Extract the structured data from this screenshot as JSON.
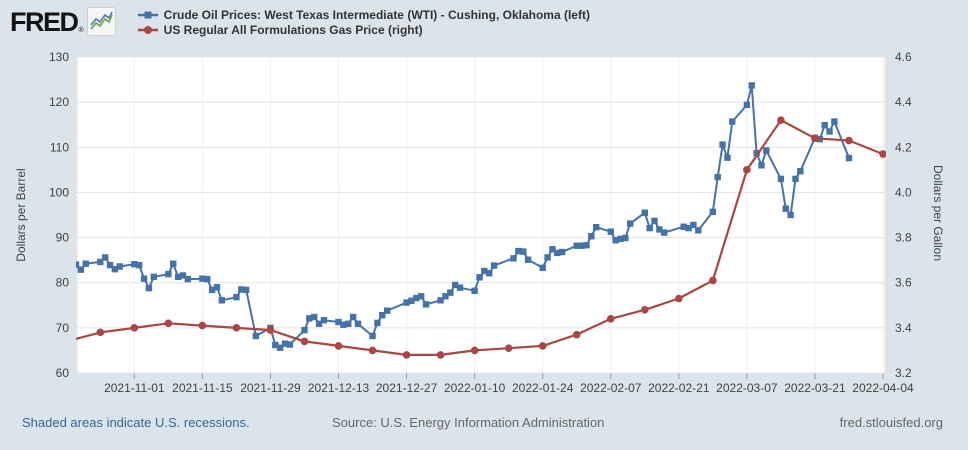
{
  "header": {
    "logo_text": "FRED",
    "logo_registered": "®"
  },
  "footer": {
    "recessions_note": "Shaded areas indicate U.S. recessions.",
    "source": "Source: U.S. Energy Information Administration",
    "site": "fred.stlouisfed.org"
  },
  "colors": {
    "background": "#dce4eb",
    "plot_background": "#ffffff",
    "gridline": "#e3e3e3",
    "vertical_gridline": "#f0f0f0",
    "tick_text": "#424242",
    "wti_blue": "#4572A7",
    "gas_red": "#AA4643",
    "footer_link_blue": "#336699"
  },
  "chart_data": {
    "type": "line",
    "title": "",
    "legend_position": "top",
    "grid": true,
    "x_axis": {
      "start": "2021-10-20",
      "end": "2022-04-04",
      "ticks": [
        "2021-11-01",
        "2021-11-15",
        "2021-11-29",
        "2021-12-13",
        "2021-12-27",
        "2022-01-10",
        "2022-01-24",
        "2022-02-07",
        "2022-02-21",
        "2022-03-07",
        "2022-03-21",
        "2022-04-04"
      ]
    },
    "left_axis": {
      "label": "Dollars per Barrel",
      "min": 60,
      "max": 130,
      "ticks": [
        "60",
        "70",
        "80",
        "90",
        "100",
        "110",
        "120",
        "130"
      ]
    },
    "right_axis": {
      "label": "Dollars per Gallon",
      "min": 3.2,
      "max": 4.6,
      "ticks": [
        "3.2",
        "3.4",
        "3.6",
        "3.8",
        "4.0",
        "4.2",
        "4.4",
        "4.6"
      ]
    },
    "series": [
      {
        "name": "Crude Oil Prices: West Texas Intermediate (WTI) - Cushing, Oklahoma (left)",
        "axis": "left",
        "color": "#4572A7",
        "marker": "square",
        "points": [
          [
            "2021-10-20",
            84.0
          ],
          [
            "2021-10-21",
            82.9
          ],
          [
            "2021-10-22",
            84.2
          ],
          [
            "2021-10-25",
            84.6
          ],
          [
            "2021-10-26",
            85.6
          ],
          [
            "2021-10-27",
            83.9
          ],
          [
            "2021-10-28",
            83.0
          ],
          [
            "2021-10-29",
            83.6
          ],
          [
            "2021-11-01",
            84.1
          ],
          [
            "2021-11-02",
            83.9
          ],
          [
            "2021-11-03",
            80.9
          ],
          [
            "2021-11-04",
            78.8
          ],
          [
            "2021-11-05",
            81.3
          ],
          [
            "2021-11-08",
            81.9
          ],
          [
            "2021-11-09",
            84.2
          ],
          [
            "2021-11-10",
            81.3
          ],
          [
            "2021-11-11",
            81.6
          ],
          [
            "2021-11-12",
            80.8
          ],
          [
            "2021-11-15",
            80.9
          ],
          [
            "2021-11-16",
            80.8
          ],
          [
            "2021-11-17",
            78.4
          ],
          [
            "2021-11-18",
            79.0
          ],
          [
            "2021-11-19",
            76.1
          ],
          [
            "2021-11-22",
            76.8
          ],
          [
            "2021-11-23",
            78.5
          ],
          [
            "2021-11-24",
            78.4
          ],
          [
            "2021-11-26",
            68.2
          ],
          [
            "2021-11-29",
            70.0
          ],
          [
            "2021-11-30",
            66.2
          ],
          [
            "2021-12-01",
            65.6
          ],
          [
            "2021-12-02",
            66.5
          ],
          [
            "2021-12-03",
            66.3
          ],
          [
            "2021-12-06",
            69.5
          ],
          [
            "2021-12-07",
            72.1
          ],
          [
            "2021-12-08",
            72.4
          ],
          [
            "2021-12-09",
            70.9
          ],
          [
            "2021-12-10",
            71.7
          ],
          [
            "2021-12-13",
            71.3
          ],
          [
            "2021-12-14",
            70.7
          ],
          [
            "2021-12-15",
            70.9
          ],
          [
            "2021-12-16",
            72.4
          ],
          [
            "2021-12-17",
            70.9
          ],
          [
            "2021-12-20",
            68.2
          ],
          [
            "2021-12-21",
            71.1
          ],
          [
            "2021-12-22",
            72.8
          ],
          [
            "2021-12-23",
            73.8
          ],
          [
            "2021-12-27",
            75.6
          ],
          [
            "2021-12-28",
            76.0
          ],
          [
            "2021-12-29",
            76.6
          ],
          [
            "2021-12-30",
            77.0
          ],
          [
            "2021-12-31",
            75.2
          ],
          [
            "2022-01-03",
            76.1
          ],
          [
            "2022-01-04",
            77.0
          ],
          [
            "2022-01-05",
            77.8
          ],
          [
            "2022-01-06",
            79.5
          ],
          [
            "2022-01-07",
            78.9
          ],
          [
            "2022-01-10",
            78.2
          ],
          [
            "2022-01-11",
            81.2
          ],
          [
            "2022-01-12",
            82.6
          ],
          [
            "2022-01-13",
            82.1
          ],
          [
            "2022-01-14",
            83.8
          ],
          [
            "2022-01-18",
            85.4
          ],
          [
            "2022-01-19",
            87.0
          ],
          [
            "2022-01-20",
            86.9
          ],
          [
            "2022-01-21",
            85.1
          ],
          [
            "2022-01-24",
            83.3
          ],
          [
            "2022-01-25",
            85.6
          ],
          [
            "2022-01-26",
            87.4
          ],
          [
            "2022-01-27",
            86.6
          ],
          [
            "2022-01-28",
            86.8
          ],
          [
            "2022-01-31",
            88.2
          ],
          [
            "2022-02-01",
            88.2
          ],
          [
            "2022-02-02",
            88.3
          ],
          [
            "2022-02-03",
            90.3
          ],
          [
            "2022-02-04",
            92.3
          ],
          [
            "2022-02-07",
            91.3
          ],
          [
            "2022-02-08",
            89.4
          ],
          [
            "2022-02-09",
            89.7
          ],
          [
            "2022-02-10",
            89.9
          ],
          [
            "2022-02-11",
            93.1
          ],
          [
            "2022-02-14",
            95.5
          ],
          [
            "2022-02-15",
            92.1
          ],
          [
            "2022-02-16",
            93.7
          ],
          [
            "2022-02-17",
            91.8
          ],
          [
            "2022-02-18",
            91.1
          ],
          [
            "2022-02-22",
            92.4
          ],
          [
            "2022-02-23",
            92.1
          ],
          [
            "2022-02-24",
            92.8
          ],
          [
            "2022-02-25",
            91.6
          ],
          [
            "2022-02-28",
            95.7
          ],
          [
            "2022-03-01",
            103.4
          ],
          [
            "2022-03-02",
            110.6
          ],
          [
            "2022-03-03",
            107.7
          ],
          [
            "2022-03-04",
            115.7
          ],
          [
            "2022-03-07",
            119.4
          ],
          [
            "2022-03-08",
            123.7
          ],
          [
            "2022-03-09",
            108.7
          ],
          [
            "2022-03-10",
            106.0
          ],
          [
            "2022-03-11",
            109.3
          ],
          [
            "2022-03-14",
            103.0
          ],
          [
            "2022-03-15",
            96.4
          ],
          [
            "2022-03-16",
            95.0
          ],
          [
            "2022-03-17",
            103.0
          ],
          [
            "2022-03-18",
            104.7
          ],
          [
            "2022-03-21",
            112.1
          ],
          [
            "2022-03-22",
            111.8
          ],
          [
            "2022-03-23",
            114.9
          ],
          [
            "2022-03-24",
            113.5
          ],
          [
            "2022-03-25",
            115.7
          ],
          [
            "2022-03-28",
            107.6
          ]
        ]
      },
      {
        "name": "US Regular All Formulations Gas Price (right)",
        "axis": "right",
        "color": "#AA4643",
        "marker": "circle",
        "points": [
          [
            "2021-10-18",
            3.34
          ],
          [
            "2021-10-25",
            3.38
          ],
          [
            "2021-11-01",
            3.4
          ],
          [
            "2021-11-08",
            3.42
          ],
          [
            "2021-11-15",
            3.41
          ],
          [
            "2021-11-22",
            3.4
          ],
          [
            "2021-11-29",
            3.39
          ],
          [
            "2021-12-06",
            3.34
          ],
          [
            "2021-12-13",
            3.32
          ],
          [
            "2021-12-20",
            3.3
          ],
          [
            "2021-12-27",
            3.28
          ],
          [
            "2022-01-03",
            3.28
          ],
          [
            "2022-01-10",
            3.3
          ],
          [
            "2022-01-17",
            3.31
          ],
          [
            "2022-01-24",
            3.32
          ],
          [
            "2022-01-31",
            3.37
          ],
          [
            "2022-02-07",
            3.44
          ],
          [
            "2022-02-14",
            3.48
          ],
          [
            "2022-02-21",
            3.53
          ],
          [
            "2022-02-28",
            3.61
          ],
          [
            "2022-03-07",
            4.1
          ],
          [
            "2022-03-14",
            4.32
          ],
          [
            "2022-03-21",
            4.24
          ],
          [
            "2022-03-28",
            4.23
          ],
          [
            "2022-04-04",
            4.17
          ]
        ]
      }
    ]
  }
}
